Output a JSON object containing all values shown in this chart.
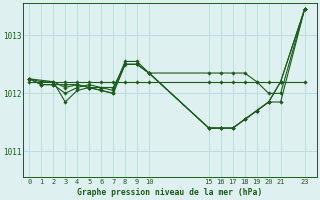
{
  "bg_color": "#dff0f0",
  "line_color": "#1a5c1a",
  "grid_color": "#b8dada",
  "title": "Graphe pression niveau de la mer (hPa)",
  "ylabel_ticks": [
    1011,
    1012,
    1013
  ],
  "xlim": [
    -0.5,
    24.0
  ],
  "ylim": [
    1010.55,
    1013.55
  ],
  "xtick_positions": [
    0,
    1,
    2,
    3,
    4,
    5,
    6,
    7,
    8,
    9,
    10,
    15,
    16,
    17,
    18,
    19,
    20,
    21,
    23
  ],
  "xtick_labels": [
    "0",
    "1",
    "2",
    "3",
    "4",
    "5",
    "6",
    "7",
    "8",
    "9",
    "10",
    "15",
    "16",
    "17",
    "18",
    "19",
    "20",
    "21",
    "23"
  ],
  "series": [
    {
      "x": [
        0,
        1,
        2,
        3,
        4,
        5,
        6,
        7,
        8,
        9,
        10,
        15,
        16,
        17,
        18,
        19,
        20,
        21,
        23
      ],
      "y": [
        1012.2,
        1012.2,
        1012.2,
        1012.2,
        1012.2,
        1012.2,
        1012.2,
        1012.2,
        1012.2,
        1012.2,
        1012.2,
        1012.2,
        1012.2,
        1012.2,
        1012.2,
        1012.2,
        1012.2,
        1012.2,
        1012.2
      ]
    },
    {
      "x": [
        0,
        1,
        2,
        3,
        4,
        5,
        6,
        7,
        8,
        9,
        10,
        15,
        16,
        17,
        18,
        19,
        20,
        21,
        23
      ],
      "y": [
        1012.25,
        1012.15,
        1012.15,
        1012.0,
        1012.1,
        1012.15,
        1012.1,
        1012.1,
        1012.5,
        1012.5,
        1012.35,
        1012.35,
        1012.35,
        1012.35,
        1012.35,
        1012.2,
        1012.0,
        1012.0,
        1013.45
      ]
    },
    {
      "x": [
        0,
        1,
        2,
        3,
        4,
        5,
        6,
        7,
        8,
        9,
        10,
        15,
        16,
        17,
        18,
        19,
        20,
        21,
        23
      ],
      "y": [
        1012.25,
        1012.15,
        1012.15,
        1012.15,
        1012.15,
        1012.1,
        1012.05,
        1012.0,
        1012.5,
        1012.5,
        1012.35,
        1011.4,
        1011.4,
        1011.4,
        1011.55,
        1011.7,
        1011.85,
        1011.85,
        1013.45
      ]
    },
    {
      "x": [
        0,
        2,
        3,
        4,
        5,
        6,
        7,
        8,
        9,
        10,
        15,
        16,
        17,
        18,
        19,
        20,
        21,
        23
      ],
      "y": [
        1012.25,
        1012.2,
        1011.85,
        1012.05,
        1012.1,
        1012.05,
        1012.0,
        1012.5,
        1012.5,
        1012.35,
        1011.4,
        1011.4,
        1011.4,
        1011.55,
        1011.7,
        1011.85,
        1012.2,
        1013.45
      ]
    },
    {
      "x": [
        0,
        1,
        2,
        3,
        4,
        5,
        6,
        7,
        8,
        9,
        10,
        15,
        16,
        17,
        18,
        19,
        20,
        21,
        23
      ],
      "y": [
        1012.25,
        1012.2,
        1012.2,
        1012.1,
        1012.15,
        1012.1,
        1012.1,
        1012.05,
        1012.55,
        1012.55,
        1012.35,
        1011.4,
        1011.4,
        1011.4,
        1011.55,
        1011.7,
        1011.85,
        1012.2,
        1013.45
      ]
    }
  ]
}
